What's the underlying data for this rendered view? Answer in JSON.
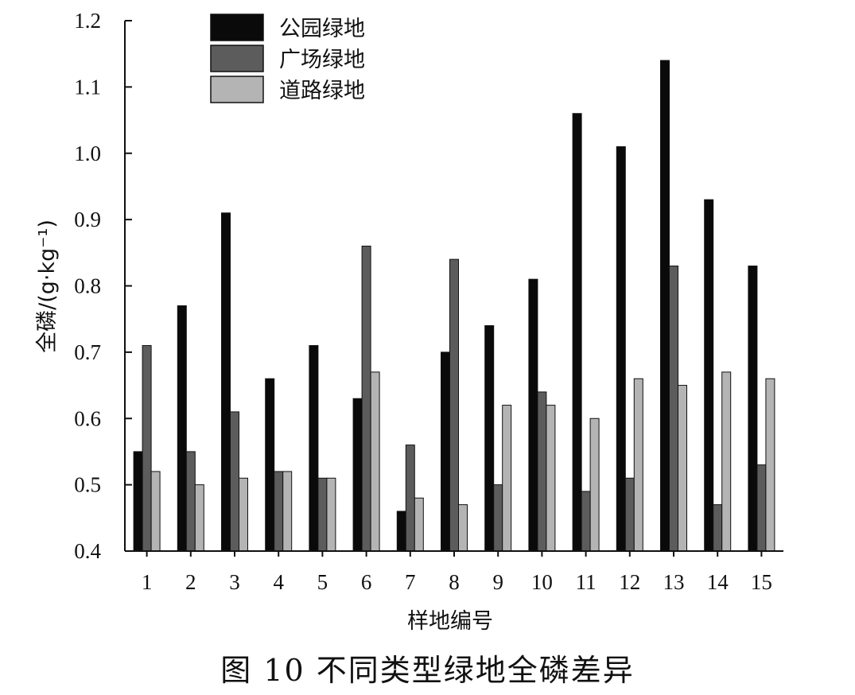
{
  "figure_caption": "图 10   不同类型绿地全磷差异",
  "chart_data": {
    "type": "bar",
    "title": "",
    "xlabel": "样地编号",
    "ylabel": "全磷/(g·kg⁻¹)",
    "ylim": [
      0.4,
      1.2
    ],
    "yticks": [
      "0.4",
      "0.5",
      "0.6",
      "0.7",
      "0.8",
      "0.9",
      "1.0",
      "1.1",
      "1.2"
    ],
    "categories": [
      "1",
      "2",
      "3",
      "4",
      "5",
      "6",
      "7",
      "8",
      "9",
      "10",
      "11",
      "12",
      "13",
      "14",
      "15"
    ],
    "legend_position": "top-left",
    "series": [
      {
        "name": "公园绿地",
        "color": "#0a0a0a",
        "values": [
          0.55,
          0.77,
          0.91,
          0.66,
          0.71,
          0.63,
          0.46,
          0.7,
          0.74,
          0.81,
          1.06,
          1.01,
          1.14,
          0.93,
          0.83
        ]
      },
      {
        "name": "广场绿地",
        "color": "#5c5c5c",
        "values": [
          0.71,
          0.55,
          0.61,
          0.52,
          0.51,
          0.86,
          0.56,
          0.84,
          0.5,
          0.64,
          0.49,
          0.51,
          0.83,
          0.47,
          0.53
        ]
      },
      {
        "name": "道路绿地",
        "color": "#b4b4b4",
        "values": [
          0.52,
          0.5,
          0.51,
          0.52,
          0.51,
          0.67,
          0.48,
          0.47,
          0.62,
          0.62,
          0.6,
          0.66,
          0.65,
          0.67,
          0.66
        ]
      }
    ]
  }
}
